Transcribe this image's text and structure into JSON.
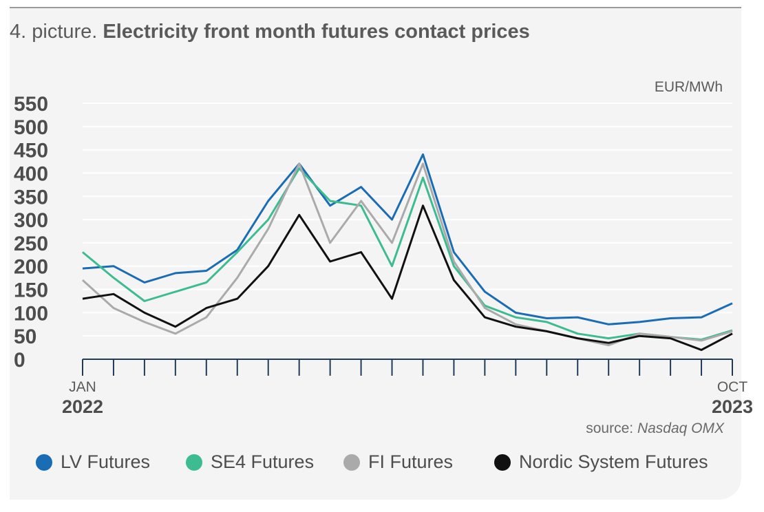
{
  "title": {
    "prefix": "4. picture.",
    "main": "Electricity front month futures contact prices"
  },
  "source": {
    "label": "source:",
    "name": "Nasdaq OMX"
  },
  "chart_data": {
    "type": "line",
    "unit": "EUR/MWh",
    "ylim": [
      0,
      550
    ],
    "yticks": [
      0,
      50,
      100,
      150,
      200,
      250,
      300,
      350,
      400,
      450,
      500,
      550
    ],
    "xlim": [
      "2022-01",
      "2023-10"
    ],
    "x_labels": [
      {
        "month": "JAN",
        "year": "2022",
        "at": "2022-01"
      },
      {
        "month": "OCT",
        "year": "2023",
        "at": "2023-10"
      }
    ],
    "grid": true,
    "legend_position": "bottom",
    "x": [
      "2022-01",
      "2022-02",
      "2022-03",
      "2022-04",
      "2022-05",
      "2022-06",
      "2022-07",
      "2022-08",
      "2022-09",
      "2022-10",
      "2022-11",
      "2022-12",
      "2023-01",
      "2023-02",
      "2023-03",
      "2023-04",
      "2023-05",
      "2023-06",
      "2023-07",
      "2023-08",
      "2023-09",
      "2023-10"
    ],
    "series": [
      {
        "name": "LV Futures",
        "color": "#1a6db4",
        "values": [
          195,
          200,
          165,
          185,
          190,
          235,
          340,
          420,
          330,
          370,
          300,
          440,
          230,
          145,
          100,
          88,
          90,
          75,
          80,
          88,
          90,
          120
        ]
      },
      {
        "name": "SE4 Futures",
        "color": "#3dbb91",
        "values": [
          230,
          175,
          125,
          145,
          165,
          230,
          300,
          410,
          340,
          330,
          200,
          390,
          200,
          115,
          90,
          80,
          55,
          45,
          55,
          48,
          42,
          62
        ]
      },
      {
        "name": "FI Futures",
        "color": "#aaaaaa",
        "values": [
          170,
          110,
          80,
          55,
          90,
          175,
          280,
          420,
          250,
          340,
          250,
          420,
          210,
          110,
          75,
          60,
          45,
          30,
          55,
          48,
          40,
          60
        ]
      },
      {
        "name": "Nordic System Futures",
        "color": "#111111",
        "values": [
          130,
          140,
          100,
          70,
          110,
          130,
          200,
          310,
          210,
          230,
          130,
          330,
          170,
          90,
          70,
          60,
          45,
          35,
          50,
          45,
          20,
          55
        ]
      }
    ]
  }
}
